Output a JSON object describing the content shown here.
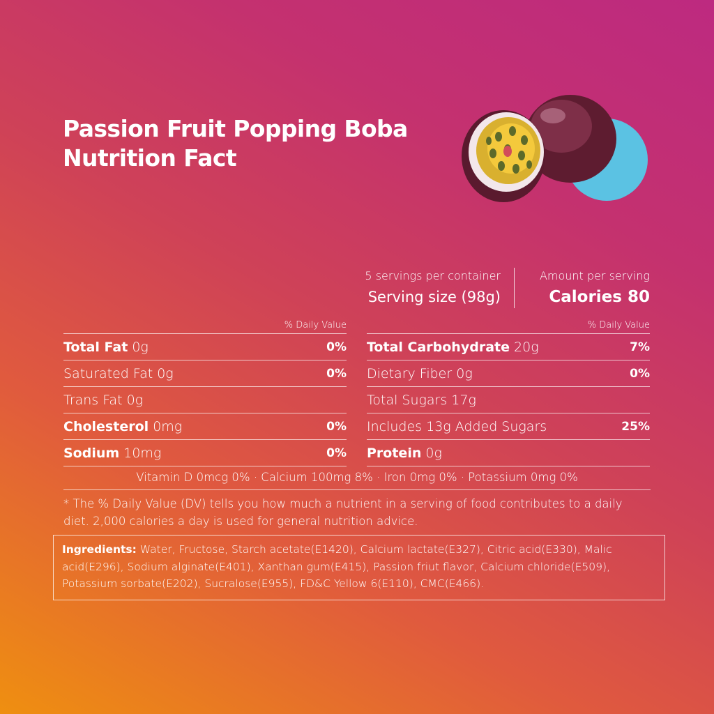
{
  "title": {
    "line1": "Passion Fruit Popping Boba",
    "line2": "Nutrition Fact"
  },
  "colors": {
    "circle": "#5bc2e3",
    "fruit_skin": "#6b2338",
    "pulp": "#f2c23a",
    "seeds": "#5d6a2a"
  },
  "serving": {
    "servings_per_container": "5 servings per container",
    "serving_size": "Serving size (98g)"
  },
  "amount": {
    "label": "Amount per serving",
    "calories": "Calories 80"
  },
  "dv_header": "% Daily Value",
  "left": [
    {
      "name": "Total Fat",
      "amount": "0g",
      "pct": "0%"
    },
    {
      "name": "Saturated Fat",
      "amount": "0g",
      "pct": "0%"
    },
    {
      "name": "Trans Fat",
      "amount": "0g",
      "pct": ""
    },
    {
      "name": "Cholesterol",
      "amount": "0mg",
      "pct": "0%"
    },
    {
      "name": "Sodium",
      "amount": "10mg",
      "pct": "0%"
    }
  ],
  "right": [
    {
      "name": "Total Carbohydrate",
      "amount": "20g",
      "pct": "7%"
    },
    {
      "name": "Dietary Fiber",
      "amount": "0g",
      "pct": "0%"
    },
    {
      "name": "Total Sugars",
      "amount": "17g",
      "pct": ""
    },
    {
      "name": "Includes 13g Added Sugars",
      "amount": "",
      "pct": "25%"
    },
    {
      "name": "Protein",
      "amount": "0g",
      "pct": ""
    }
  ],
  "vitamins": "Vitamin D 0mcg 0% · Calcium 100mg 8% · Iron 0mg 0% · Potassium 0mg 0%",
  "footnote": "* The % Daily Value (DV) tells you how much a nutrient in a serving of food contributes to a daily diet. 2,000 calories a day is used for general nutrition advice.",
  "ingredients": {
    "label": "Ingredients:",
    "text": "Water, Fructose, Starch acetate(E1420), Calcium lactate(E327), Citric acid(E330), Malic acid(E296), Sodium alginate(E401), Xanthan gum(E415), Passion friut flavor, Calcium chloride(E509), Potassium sorbate(E202), Sucralose(E955), FD&C Yellow 6(E110), CMC(E466)."
  }
}
